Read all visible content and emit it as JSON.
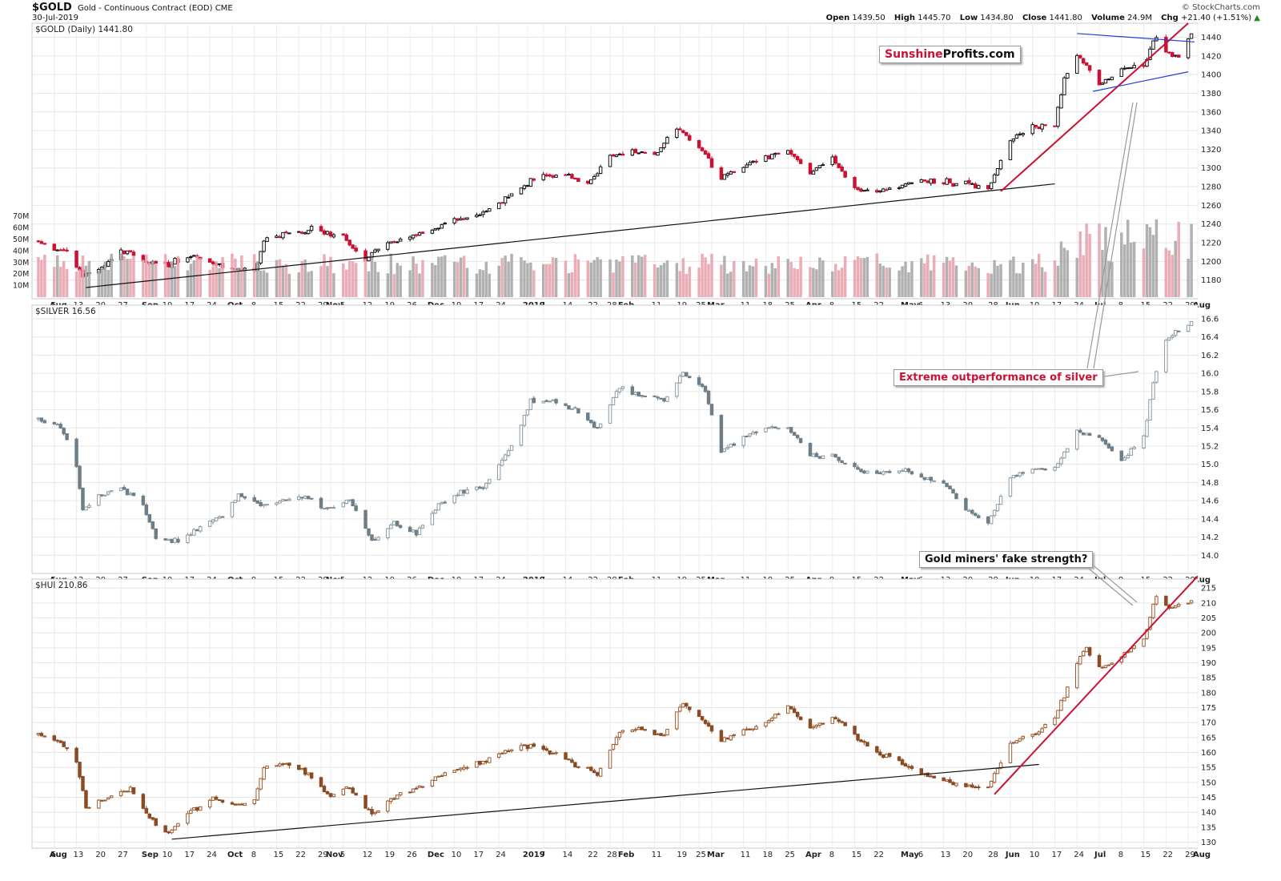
{
  "header": {
    "symbol": "$GOLD",
    "description": "Gold - Continuous Contract (EOD)",
    "exchange": "CME",
    "date": "30-Jul-2019",
    "brand": "© StockCharts.com",
    "quote": {
      "open_label": "Open",
      "open": "1439.50",
      "high_label": "High",
      "high": "1445.70",
      "low_label": "Low",
      "low": "1434.80",
      "close_label": "Close",
      "close": "1441.80",
      "volume_label": "Volume",
      "volume": "24.9M",
      "chg_label": "Chg",
      "chg": "+21.40 (+1.51%)"
    }
  },
  "annotations": {
    "logo_part1": "Sunshine",
    "logo_part2": "Profits.com",
    "silver_note": "Extreme outperformance of silver",
    "miners_note": "Gold miners' fake strength?"
  },
  "chart_data": [
    {
      "type": "candlestick",
      "title": "$GOLD (Daily) 1441.80",
      "ylim": [
        1160,
        1455
      ],
      "y_ticks": [
        1180,
        1200,
        1220,
        1240,
        1260,
        1280,
        1300,
        1320,
        1340,
        1360,
        1380,
        1400,
        1420,
        1440
      ],
      "volume_ticks": [
        "10M",
        "20M",
        "30M",
        "40M",
        "50M",
        "60M",
        "70M"
      ],
      "volume_ylim": [
        0,
        75
      ],
      "up_color": "#111111",
      "down_color": "#cc1133",
      "volume_up_color": "#a8a8a8",
      "volume_down_color": "#e8a3ad",
      "close_path": [
        {
          "d": "2018-08-01",
          "c": 1222
        },
        {
          "d": "2018-08-06",
          "c": 1210
        },
        {
          "d": "2018-08-10",
          "c": 1212
        },
        {
          "d": "2018-08-15",
          "c": 1185
        },
        {
          "d": "2018-08-20",
          "c": 1190
        },
        {
          "d": "2018-08-27",
          "c": 1212
        },
        {
          "d": "2018-09-03",
          "c": 1200
        },
        {
          "d": "2018-09-10",
          "c": 1196
        },
        {
          "d": "2018-09-17",
          "c": 1205
        },
        {
          "d": "2018-09-24",
          "c": 1200
        },
        {
          "d": "2018-10-01",
          "c": 1190
        },
        {
          "d": "2018-10-08",
          "c": 1191
        },
        {
          "d": "2018-10-11",
          "c": 1222
        },
        {
          "d": "2018-10-15",
          "c": 1228
        },
        {
          "d": "2018-10-22",
          "c": 1230
        },
        {
          "d": "2018-10-26",
          "c": 1236
        },
        {
          "d": "2018-10-29",
          "c": 1232
        },
        {
          "d": "2018-11-05",
          "c": 1225
        },
        {
          "d": "2018-11-12",
          "c": 1202
        },
        {
          "d": "2018-11-19",
          "c": 1220
        },
        {
          "d": "2018-11-26",
          "c": 1225
        },
        {
          "d": "2018-12-03",
          "c": 1235
        },
        {
          "d": "2018-12-10",
          "c": 1245
        },
        {
          "d": "2018-12-17",
          "c": 1248
        },
        {
          "d": "2018-12-24",
          "c": 1262
        },
        {
          "d": "2018-12-31",
          "c": 1282
        },
        {
          "d": "2019-01-07",
          "c": 1292
        },
        {
          "d": "2019-01-14",
          "c": 1292
        },
        {
          "d": "2019-01-21",
          "c": 1283
        },
        {
          "d": "2019-01-28",
          "c": 1312
        },
        {
          "d": "2019-02-04",
          "c": 1318
        },
        {
          "d": "2019-02-11",
          "c": 1314
        },
        {
          "d": "2019-02-18",
          "c": 1343
        },
        {
          "d": "2019-02-25",
          "c": 1322
        },
        {
          "d": "2019-03-04",
          "c": 1290
        },
        {
          "d": "2019-03-11",
          "c": 1302
        },
        {
          "d": "2019-03-18",
          "c": 1312
        },
        {
          "d": "2019-03-25",
          "c": 1318
        },
        {
          "d": "2019-04-01",
          "c": 1295
        },
        {
          "d": "2019-04-08",
          "c": 1310
        },
        {
          "d": "2019-04-15",
          "c": 1277
        },
        {
          "d": "2019-04-22",
          "c": 1275
        },
        {
          "d": "2019-04-29",
          "c": 1282
        },
        {
          "d": "2019-05-06",
          "c": 1286
        },
        {
          "d": "2019-05-13",
          "c": 1285
        },
        {
          "d": "2019-05-20",
          "c": 1283
        },
        {
          "d": "2019-05-27",
          "c": 1278
        },
        {
          "d": "2019-06-03",
          "c": 1330
        },
        {
          "d": "2019-06-10",
          "c": 1345
        },
        {
          "d": "2019-06-17",
          "c": 1345
        },
        {
          "d": "2019-06-20",
          "c": 1395
        },
        {
          "d": "2019-06-24",
          "c": 1420
        },
        {
          "d": "2019-06-27",
          "c": 1412
        },
        {
          "d": "2019-07-01",
          "c": 1388
        },
        {
          "d": "2019-07-08",
          "c": 1405
        },
        {
          "d": "2019-07-15",
          "c": 1410
        },
        {
          "d": "2019-07-19",
          "c": 1440
        },
        {
          "d": "2019-07-22",
          "c": 1425
        },
        {
          "d": "2019-07-26",
          "c": 1420
        },
        {
          "d": "2019-07-30",
          "c": 1441.8
        }
      ],
      "trend_lines": [
        {
          "color": "#111111",
          "from": {
            "d": "2018-08-16",
            "v": 1172
          },
          "to": {
            "d": "2019-06-17",
            "v": 1283
          }
        },
        {
          "color": "#cc1133",
          "from": {
            "d": "2019-05-31",
            "v": 1275
          },
          "to": {
            "d": "2019-07-29",
            "v": 1455
          }
        },
        {
          "color": "#1f3fd6",
          "from": {
            "d": "2019-06-24",
            "v": 1444
          },
          "to": {
            "d": "2019-07-31",
            "v": 1435
          }
        },
        {
          "color": "#1f3fd6",
          "from": {
            "d": "2019-06-29",
            "v": 1382
          },
          "to": {
            "d": "2019-07-29",
            "v": 1403
          }
        }
      ]
    },
    {
      "type": "candlestick",
      "title": "$SILVER 16.56",
      "ylim": [
        13.8,
        16.75
      ],
      "y_ticks": [
        14.0,
        14.2,
        14.4,
        14.6,
        14.8,
        15.0,
        15.2,
        15.4,
        15.6,
        15.8,
        16.0,
        16.2,
        16.4,
        16.6
      ],
      "up_color": "#8a99a3",
      "down_color": "#6e7e89",
      "close_path": [
        {
          "d": "2018-08-01",
          "c": 15.5
        },
        {
          "d": "2018-08-08",
          "c": 15.42
        },
        {
          "d": "2018-08-13",
          "c": 15.0
        },
        {
          "d": "2018-08-15",
          "c": 14.5
        },
        {
          "d": "2018-08-20",
          "c": 14.65
        },
        {
          "d": "2018-08-27",
          "c": 14.75
        },
        {
          "d": "2018-09-03",
          "c": 14.55
        },
        {
          "d": "2018-09-07",
          "c": 14.2
        },
        {
          "d": "2018-09-14",
          "c": 14.15
        },
        {
          "d": "2018-09-21",
          "c": 14.3
        },
        {
          "d": "2018-09-28",
          "c": 14.45
        },
        {
          "d": "2018-10-03",
          "c": 14.65
        },
        {
          "d": "2018-10-10",
          "c": 14.55
        },
        {
          "d": "2018-10-17",
          "c": 14.6
        },
        {
          "d": "2018-10-24",
          "c": 14.65
        },
        {
          "d": "2018-10-31",
          "c": 14.5
        },
        {
          "d": "2018-11-07",
          "c": 14.6
        },
        {
          "d": "2018-11-14",
          "c": 14.15
        },
        {
          "d": "2018-11-21",
          "c": 14.35
        },
        {
          "d": "2018-11-28",
          "c": 14.25
        },
        {
          "d": "2018-12-05",
          "c": 14.55
        },
        {
          "d": "2018-12-12",
          "c": 14.7
        },
        {
          "d": "2018-12-19",
          "c": 14.75
        },
        {
          "d": "2018-12-27",
          "c": 15.15
        },
        {
          "d": "2019-01-03",
          "c": 15.7
        },
        {
          "d": "2019-01-10",
          "c": 15.7
        },
        {
          "d": "2019-01-17",
          "c": 15.6
        },
        {
          "d": "2019-01-24",
          "c": 15.4
        },
        {
          "d": "2019-01-31",
          "c": 15.85
        },
        {
          "d": "2019-02-07",
          "c": 15.75
        },
        {
          "d": "2019-02-14",
          "c": 15.7
        },
        {
          "d": "2019-02-20",
          "c": 16.0
        },
        {
          "d": "2019-02-27",
          "c": 15.8
        },
        {
          "d": "2019-03-04",
          "c": 15.15
        },
        {
          "d": "2019-03-11",
          "c": 15.3
        },
        {
          "d": "2019-03-18",
          "c": 15.4
        },
        {
          "d": "2019-03-25",
          "c": 15.4
        },
        {
          "d": "2019-04-01",
          "c": 15.1
        },
        {
          "d": "2019-04-08",
          "c": 15.1
        },
        {
          "d": "2019-04-15",
          "c": 14.95
        },
        {
          "d": "2019-04-22",
          "c": 14.9
        },
        {
          "d": "2019-04-29",
          "c": 14.95
        },
        {
          "d": "2019-05-06",
          "c": 14.85
        },
        {
          "d": "2019-05-13",
          "c": 14.8
        },
        {
          "d": "2019-05-20",
          "c": 14.5
        },
        {
          "d": "2019-05-27",
          "c": 14.35
        },
        {
          "d": "2019-06-03",
          "c": 14.85
        },
        {
          "d": "2019-06-10",
          "c": 14.95
        },
        {
          "d": "2019-06-17",
          "c": 14.95
        },
        {
          "d": "2019-06-24",
          "c": 15.35
        },
        {
          "d": "2019-07-01",
          "c": 15.3
        },
        {
          "d": "2019-07-08",
          "c": 15.05
        },
        {
          "d": "2019-07-15",
          "c": 15.3
        },
        {
          "d": "2019-07-18",
          "c": 15.9
        },
        {
          "d": "2019-07-22",
          "c": 16.35
        },
        {
          "d": "2019-07-25",
          "c": 16.45
        },
        {
          "d": "2019-07-30",
          "c": 16.56
        }
      ]
    },
    {
      "type": "candlestick",
      "title": "$HUI 210.86",
      "ylim": [
        128,
        218
      ],
      "y_ticks": [
        130,
        135,
        140,
        145,
        150,
        155,
        160,
        165,
        170,
        175,
        180,
        185,
        190,
        195,
        200,
        205,
        210,
        215
      ],
      "up_color": "#9b5a2f",
      "down_color": "#8a4a22",
      "close_path": [
        {
          "d": "2018-08-01",
          "c": 166
        },
        {
          "d": "2018-08-08",
          "c": 163
        },
        {
          "d": "2018-08-13",
          "c": 157
        },
        {
          "d": "2018-08-16",
          "c": 142
        },
        {
          "d": "2018-08-23",
          "c": 145
        },
        {
          "d": "2018-08-30",
          "c": 148
        },
        {
          "d": "2018-09-05",
          "c": 138
        },
        {
          "d": "2018-09-11",
          "c": 133
        },
        {
          "d": "2018-09-18",
          "c": 140
        },
        {
          "d": "2018-09-25",
          "c": 145
        },
        {
          "d": "2018-10-02",
          "c": 142
        },
        {
          "d": "2018-10-08",
          "c": 144
        },
        {
          "d": "2018-10-11",
          "c": 155
        },
        {
          "d": "2018-10-18",
          "c": 156
        },
        {
          "d": "2018-10-25",
          "c": 153
        },
        {
          "d": "2018-10-31",
          "c": 146
        },
        {
          "d": "2018-11-07",
          "c": 148
        },
        {
          "d": "2018-11-14",
          "c": 139
        },
        {
          "d": "2018-11-21",
          "c": 145
        },
        {
          "d": "2018-11-28",
          "c": 148
        },
        {
          "d": "2018-12-05",
          "c": 152
        },
        {
          "d": "2018-12-12",
          "c": 155
        },
        {
          "d": "2018-12-19",
          "c": 157
        },
        {
          "d": "2018-12-27",
          "c": 161
        },
        {
          "d": "2019-01-03",
          "c": 162
        },
        {
          "d": "2019-01-10",
          "c": 160
        },
        {
          "d": "2019-01-17",
          "c": 156
        },
        {
          "d": "2019-01-24",
          "c": 153
        },
        {
          "d": "2019-01-31",
          "c": 167
        },
        {
          "d": "2019-02-07",
          "c": 168
        },
        {
          "d": "2019-02-14",
          "c": 166
        },
        {
          "d": "2019-02-20",
          "c": 177
        },
        {
          "d": "2019-02-27",
          "c": 170
        },
        {
          "d": "2019-03-04",
          "c": 164
        },
        {
          "d": "2019-03-11",
          "c": 167
        },
        {
          "d": "2019-03-18",
          "c": 170
        },
        {
          "d": "2019-03-25",
          "c": 175
        },
        {
          "d": "2019-04-01",
          "c": 168
        },
        {
          "d": "2019-04-08",
          "c": 172
        },
        {
          "d": "2019-04-15",
          "c": 166
        },
        {
          "d": "2019-04-22",
          "c": 160
        },
        {
          "d": "2019-04-29",
          "c": 157
        },
        {
          "d": "2019-05-06",
          "c": 153
        },
        {
          "d": "2019-05-13",
          "c": 151
        },
        {
          "d": "2019-05-20",
          "c": 149
        },
        {
          "d": "2019-05-27",
          "c": 148
        },
        {
          "d": "2019-06-03",
          "c": 163
        },
        {
          "d": "2019-06-10",
          "c": 166
        },
        {
          "d": "2019-06-17",
          "c": 172
        },
        {
          "d": "2019-06-20",
          "c": 179
        },
        {
          "d": "2019-06-24",
          "c": 190
        },
        {
          "d": "2019-06-27",
          "c": 195
        },
        {
          "d": "2019-07-01",
          "c": 188
        },
        {
          "d": "2019-07-08",
          "c": 192
        },
        {
          "d": "2019-07-15",
          "c": 198
        },
        {
          "d": "2019-07-19",
          "c": 212
        },
        {
          "d": "2019-07-24",
          "c": 208
        },
        {
          "d": "2019-07-30",
          "c": 210.86
        }
      ],
      "trend_lines": [
        {
          "color": "#111111",
          "from": {
            "d": "2018-09-12",
            "v": 131
          },
          "to": {
            "d": "2019-06-12",
            "v": 156
          }
        },
        {
          "color": "#cc1133",
          "from": {
            "d": "2019-05-29",
            "v": 146
          },
          "to": {
            "d": "2019-08-01",
            "v": 219
          }
        }
      ]
    }
  ],
  "x_axis": {
    "date_range": [
      "2018-07-30",
      "2019-08-01"
    ],
    "tick_labels": [
      {
        "d": "2018-08-06",
        "t": "Aug"
      },
      {
        "d": "2018-08-06",
        "t": "6"
      },
      {
        "d": "2018-08-13",
        "t": "13"
      },
      {
        "d": "2018-08-20",
        "t": "20"
      },
      {
        "d": "2018-08-27",
        "t": "27"
      },
      {
        "d": "2018-09-04",
        "t": "Sep"
      },
      {
        "d": "2018-09-10",
        "t": "10"
      },
      {
        "d": "2018-09-17",
        "t": "17"
      },
      {
        "d": "2018-09-24",
        "t": "24"
      },
      {
        "d": "2018-10-01",
        "t": "Oct"
      },
      {
        "d": "2018-10-08",
        "t": "8"
      },
      {
        "d": "2018-10-15",
        "t": "15"
      },
      {
        "d": "2018-10-22",
        "t": "22"
      },
      {
        "d": "2018-10-29",
        "t": "29"
      },
      {
        "d": "2018-11-01",
        "t": "Nov"
      },
      {
        "d": "2018-11-05",
        "t": "5"
      },
      {
        "d": "2018-11-12",
        "t": "12"
      },
      {
        "d": "2018-11-19",
        "t": "19"
      },
      {
        "d": "2018-11-26",
        "t": "26"
      },
      {
        "d": "2018-12-03",
        "t": "Dec"
      },
      {
        "d": "2018-12-10",
        "t": "10"
      },
      {
        "d": "2018-12-17",
        "t": "17"
      },
      {
        "d": "2018-12-24",
        "t": "24"
      },
      {
        "d": "2019-01-02",
        "t": "2019"
      },
      {
        "d": "2019-01-07",
        "t": "7"
      },
      {
        "d": "2019-01-14",
        "t": "14"
      },
      {
        "d": "2019-01-22",
        "t": "22"
      },
      {
        "d": "2019-01-28",
        "t": "28"
      },
      {
        "d": "2019-02-01",
        "t": "Feb"
      },
      {
        "d": "2019-02-11",
        "t": "11"
      },
      {
        "d": "2019-02-19",
        "t": "19"
      },
      {
        "d": "2019-02-25",
        "t": "25"
      },
      {
        "d": "2019-03-01",
        "t": "Mar"
      },
      {
        "d": "2019-03-11",
        "t": "11"
      },
      {
        "d": "2019-03-18",
        "t": "18"
      },
      {
        "d": "2019-03-25",
        "t": "25"
      },
      {
        "d": "2019-04-01",
        "t": "Apr"
      },
      {
        "d": "2019-04-08",
        "t": "8"
      },
      {
        "d": "2019-04-15",
        "t": "15"
      },
      {
        "d": "2019-04-22",
        "t": "22"
      },
      {
        "d": "2019-05-01",
        "t": "May"
      },
      {
        "d": "2019-05-06",
        "t": "6"
      },
      {
        "d": "2019-05-13",
        "t": "13"
      },
      {
        "d": "2019-05-20",
        "t": "20"
      },
      {
        "d": "2019-05-28",
        "t": "28"
      },
      {
        "d": "2019-06-03",
        "t": "Jun"
      },
      {
        "d": "2019-06-10",
        "t": "10"
      },
      {
        "d": "2019-06-17",
        "t": "17"
      },
      {
        "d": "2019-06-24",
        "t": "24"
      },
      {
        "d": "2019-07-01",
        "t": "Jul"
      },
      {
        "d": "2019-07-08",
        "t": "8"
      },
      {
        "d": "2019-07-15",
        "t": "15"
      },
      {
        "d": "2019-07-22",
        "t": "22"
      },
      {
        "d": "2019-07-29",
        "t": "29"
      },
      {
        "d": "2019-08-01",
        "t": "Aug"
      }
    ],
    "bold_labels": [
      "Aug",
      "Sep",
      "Oct",
      "Nov",
      "Dec",
      "2019",
      "Feb",
      "Mar",
      "Apr",
      "May",
      "Jun",
      "Jul"
    ]
  }
}
